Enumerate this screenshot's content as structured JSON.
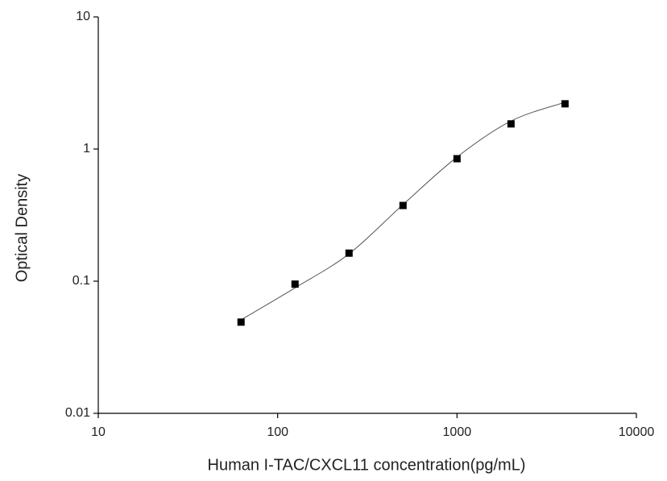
{
  "chart_data": {
    "type": "scatter",
    "x_label": "Human I-TAC/CXCL11 concentration(pg/mL)",
    "y_label": "Optical Density",
    "xscale": "log",
    "yscale": "log",
    "xlim": [
      10,
      10000
    ],
    "ylim": [
      0.01,
      10
    ],
    "xticks": [
      10,
      100,
      1000,
      10000
    ],
    "yticks": [
      0.01,
      0.1,
      1,
      10
    ],
    "series": [
      {
        "mode": "line",
        "color": "#555555",
        "x": [
          62.5,
          125,
          250,
          500,
          1000,
          2000,
          4000
        ],
        "values": [
          0.051,
          0.089,
          0.161,
          0.38,
          0.87,
          1.63,
          2.26
        ]
      },
      {
        "mode": "markers",
        "color": "#000000",
        "x": [
          62.5,
          125,
          250,
          500,
          1000,
          2000,
          4000
        ],
        "values": [
          0.049,
          0.095,
          0.163,
          0.374,
          0.845,
          1.55,
          2.2
        ]
      }
    ]
  }
}
